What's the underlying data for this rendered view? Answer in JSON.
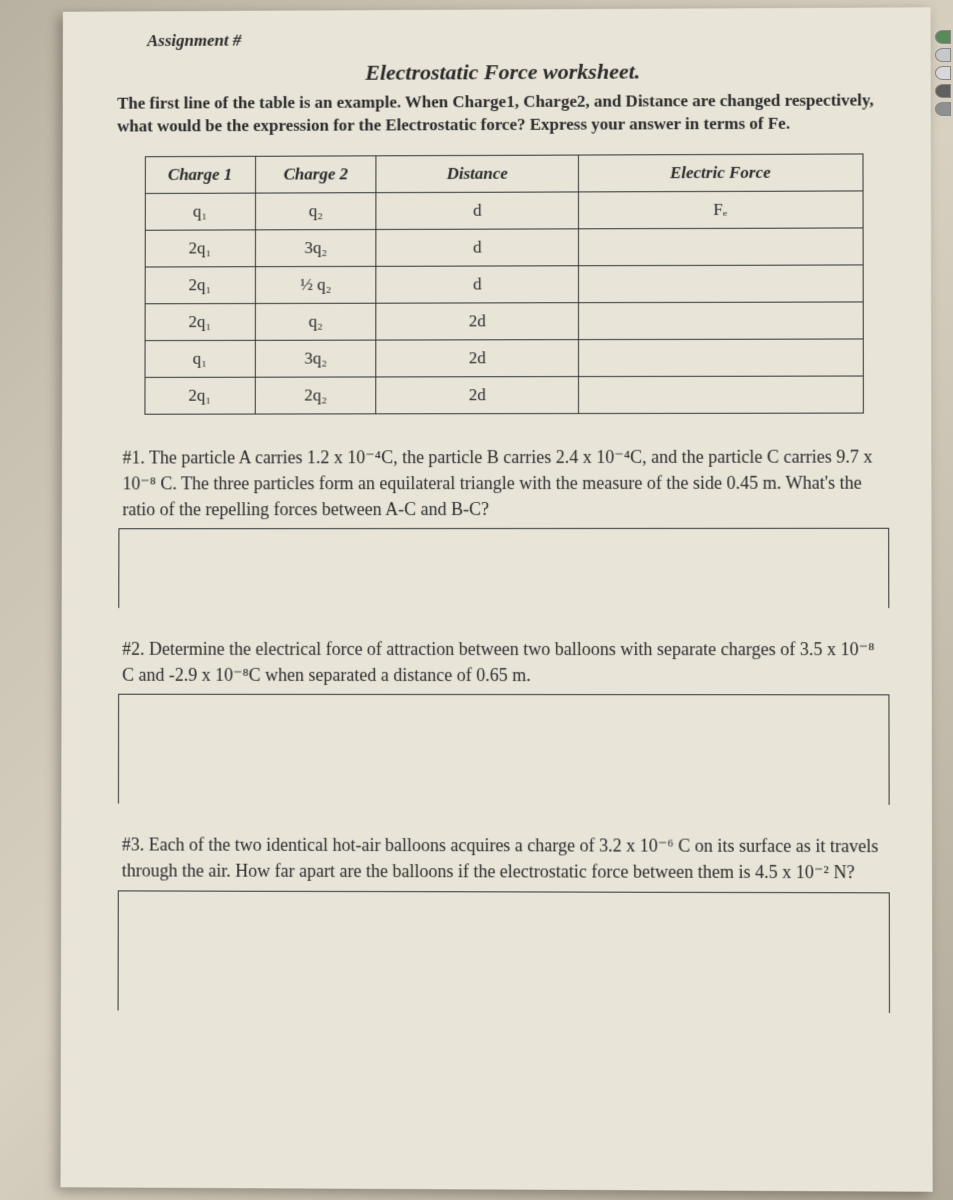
{
  "header": {
    "assignment": "Assignment #",
    "title": "Electrostatic Force worksheet.",
    "intro": "The first line of the table is an example. When Charge1, Charge2, and Distance are changed respectively, what would be the expression for the Electrostatic force? Express your answer in terms of Fe."
  },
  "table": {
    "headers": [
      "Charge 1",
      "Charge 2",
      "Distance",
      "Electric Force"
    ],
    "rows": [
      {
        "c1": "q₁",
        "c2": "q₂",
        "dist": "d",
        "force": "Fₑ"
      },
      {
        "c1": "2q₁",
        "c2": "3q₂",
        "dist": "d",
        "force": ""
      },
      {
        "c1": "2q₁",
        "c2": "½ q₂",
        "dist": "d",
        "force": ""
      },
      {
        "c1": "2q₁",
        "c2": "q₂",
        "dist": "2d",
        "force": ""
      },
      {
        "c1": "q₁",
        "c2": "3q₂",
        "dist": "2d",
        "force": ""
      },
      {
        "c1": "2q₁",
        "c2": "2q₂",
        "dist": "2d",
        "force": ""
      }
    ]
  },
  "questions": {
    "q1": "#1. The particle A carries 1.2 x 10⁻⁴C, the particle B carries 2.4 x 10⁻⁴C, and the particle C carries 9.7 x 10⁻⁸ C. The three particles form an equilateral triangle with the measure of the side 0.45 m. What's the ratio of the repelling forces between A-C and B-C?",
    "q2": "#2. Determine the electrical force of attraction between two balloons with separate charges of 3.5 x 10⁻⁸ C and -2.9 x 10⁻⁸C when separated a distance of 0.65 m.",
    "q3": "#3. Each of the two identical hot-air balloons acquires a charge of 3.2 x 10⁻⁶ C on its surface as it travels through the air. How far apart are the balloons if the electrostatic force between them is 4.5 x 10⁻² N?"
  },
  "tabs": [
    {
      "color": "#5a8a5a"
    },
    {
      "color": "#c8c8c8"
    },
    {
      "color": "#d8d8d8"
    },
    {
      "color": "#606060"
    },
    {
      "color": "#909090"
    }
  ]
}
